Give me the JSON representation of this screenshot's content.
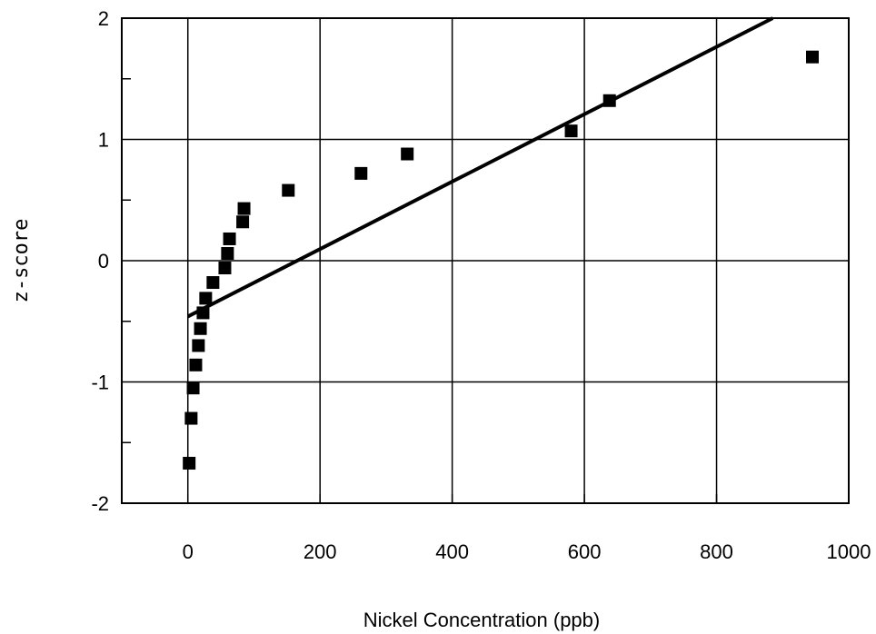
{
  "chart_data": {
    "type": "scatter",
    "title": "",
    "xlabel": "Nickel Concentration (ppb)",
    "ylabel": "z-score",
    "xlim": [
      -100,
      1000
    ],
    "ylim": [
      -2,
      2
    ],
    "x_ticks": [
      0,
      200,
      400,
      600,
      800,
      1000
    ],
    "x_tick_labels": [
      "0",
      "200",
      "400",
      "600",
      "800",
      "1000"
    ],
    "y_ticks": [
      -2,
      -1,
      0,
      1,
      2
    ],
    "y_tick_labels": [
      "-2",
      "-1",
      "0",
      "1",
      "2"
    ],
    "grid": true,
    "legend": "none",
    "marker_color": "#000000",
    "line_color": "#000000",
    "points": [
      {
        "x": 2,
        "y": -1.67
      },
      {
        "x": 5,
        "y": -1.3
      },
      {
        "x": 8,
        "y": -1.05
      },
      {
        "x": 12,
        "y": -0.86
      },
      {
        "x": 16,
        "y": -0.7
      },
      {
        "x": 19,
        "y": -0.56
      },
      {
        "x": 23,
        "y": -0.43
      },
      {
        "x": 27,
        "y": -0.31
      },
      {
        "x": 38,
        "y": -0.18
      },
      {
        "x": 56,
        "y": -0.06
      },
      {
        "x": 60,
        "y": 0.06
      },
      {
        "x": 63,
        "y": 0.18
      },
      {
        "x": 83,
        "y": 0.32
      },
      {
        "x": 85,
        "y": 0.43
      },
      {
        "x": 152,
        "y": 0.58
      },
      {
        "x": 262,
        "y": 0.72
      },
      {
        "x": 332,
        "y": 0.88
      },
      {
        "x": 580,
        "y": 1.07
      },
      {
        "x": 638,
        "y": 1.32
      },
      {
        "x": 945,
        "y": 1.68
      }
    ],
    "fit_line": [
      {
        "x": 0,
        "y": -0.46
      },
      {
        "x": 885,
        "y": 2.0
      }
    ]
  }
}
